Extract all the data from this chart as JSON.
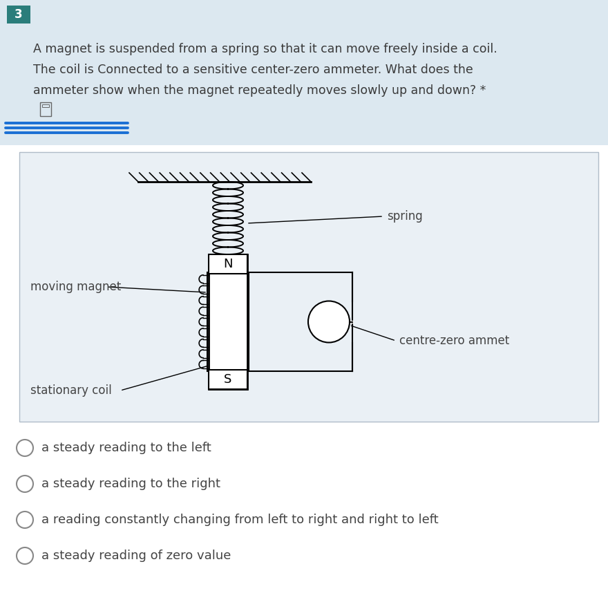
{
  "bg_color_top": "#dce8f0",
  "bg_color_bottom": "#ffffff",
  "question_number": "3",
  "question_number_bg": "#2a7d7b",
  "question_text_line1": "A magnet is suspended from a spring so that it can move freely inside a coil.",
  "question_text_line2": "The coil is Connected to a sensitive center-zero ammeter. What does the",
  "question_text_line3": "ammeter show when the magnet repeatedly moves slowly up and down? *",
  "question_text_color": "#3a3a3a",
  "diagram_bg": "#eaf0f5",
  "diagram_border": "#b0bcc8",
  "label_spring": "spring",
  "label_moving_magnet": "moving magnet",
  "label_centre_zero": "centre-zero ammet",
  "label_stationary_coil": "stationary coil",
  "options": [
    "a steady reading to the left",
    "a steady reading to the right",
    "a reading constantly changing from left to right and right to left",
    "a steady reading of zero value"
  ],
  "label_color": "#444444",
  "option_color": "#444444"
}
